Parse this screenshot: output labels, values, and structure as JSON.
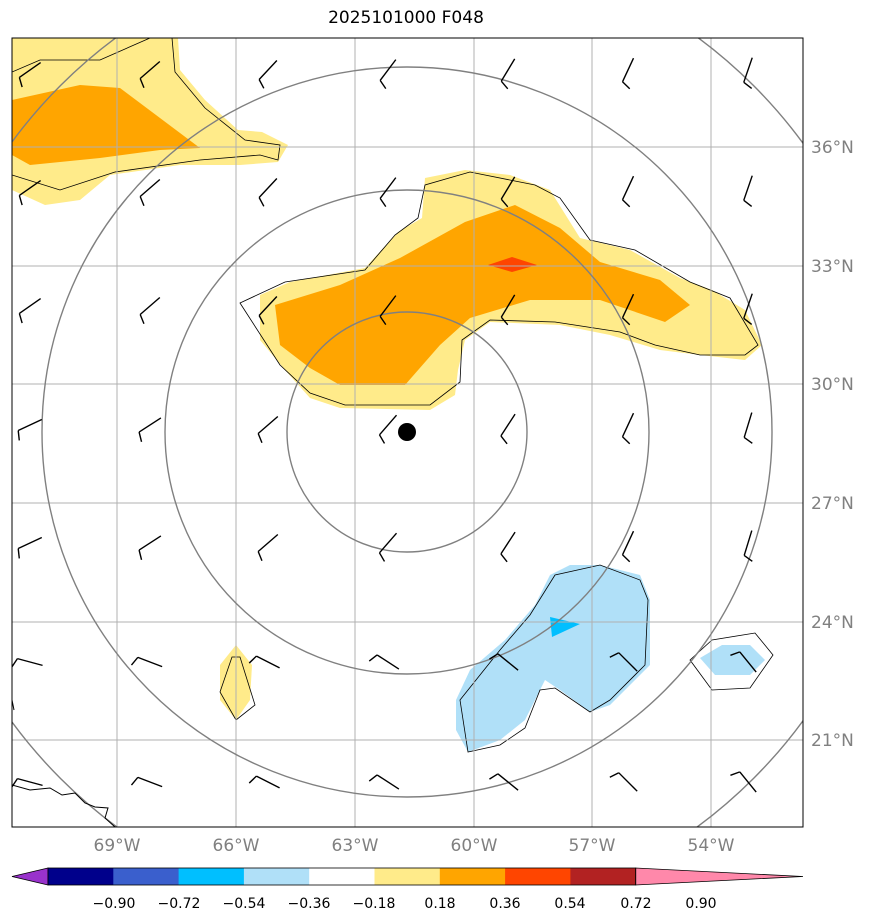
{
  "title": "2025101000 F048",
  "axes": {
    "lon_labels": [
      "69°W",
      "66°W",
      "63°W",
      "60°W",
      "57°W",
      "54°W"
    ],
    "lat_labels": [
      "36°N",
      "33°N",
      "30°N",
      "27°N",
      "24°N",
      "21°N"
    ],
    "label_color": "#808080",
    "gridlines": true
  },
  "colorbar": {
    "tick_labels": [
      "−0.90",
      "−0.72",
      "−0.54",
      "−0.36",
      "−0.18",
      "0.18",
      "0.36",
      "0.54",
      "0.72",
      "0.90"
    ],
    "colors": [
      "#9932cc",
      "#00008b",
      "#3a5fcd",
      "#00bfff",
      "#b0e0f8",
      "#ffffff",
      "#ffeb8a",
      "#ffa500",
      "#ff4500",
      "#b22222",
      "#ff88aa"
    ]
  },
  "storm_center": {
    "lon": -61.5,
    "lat": 28.8
  },
  "fill_colors": {
    "light_yellow": "#ffeb8a",
    "orange": "#ffa500",
    "red_orange": "#ff4500",
    "light_blue": "#b0e0f8",
    "deep_sky_blue": "#00bfff"
  }
}
